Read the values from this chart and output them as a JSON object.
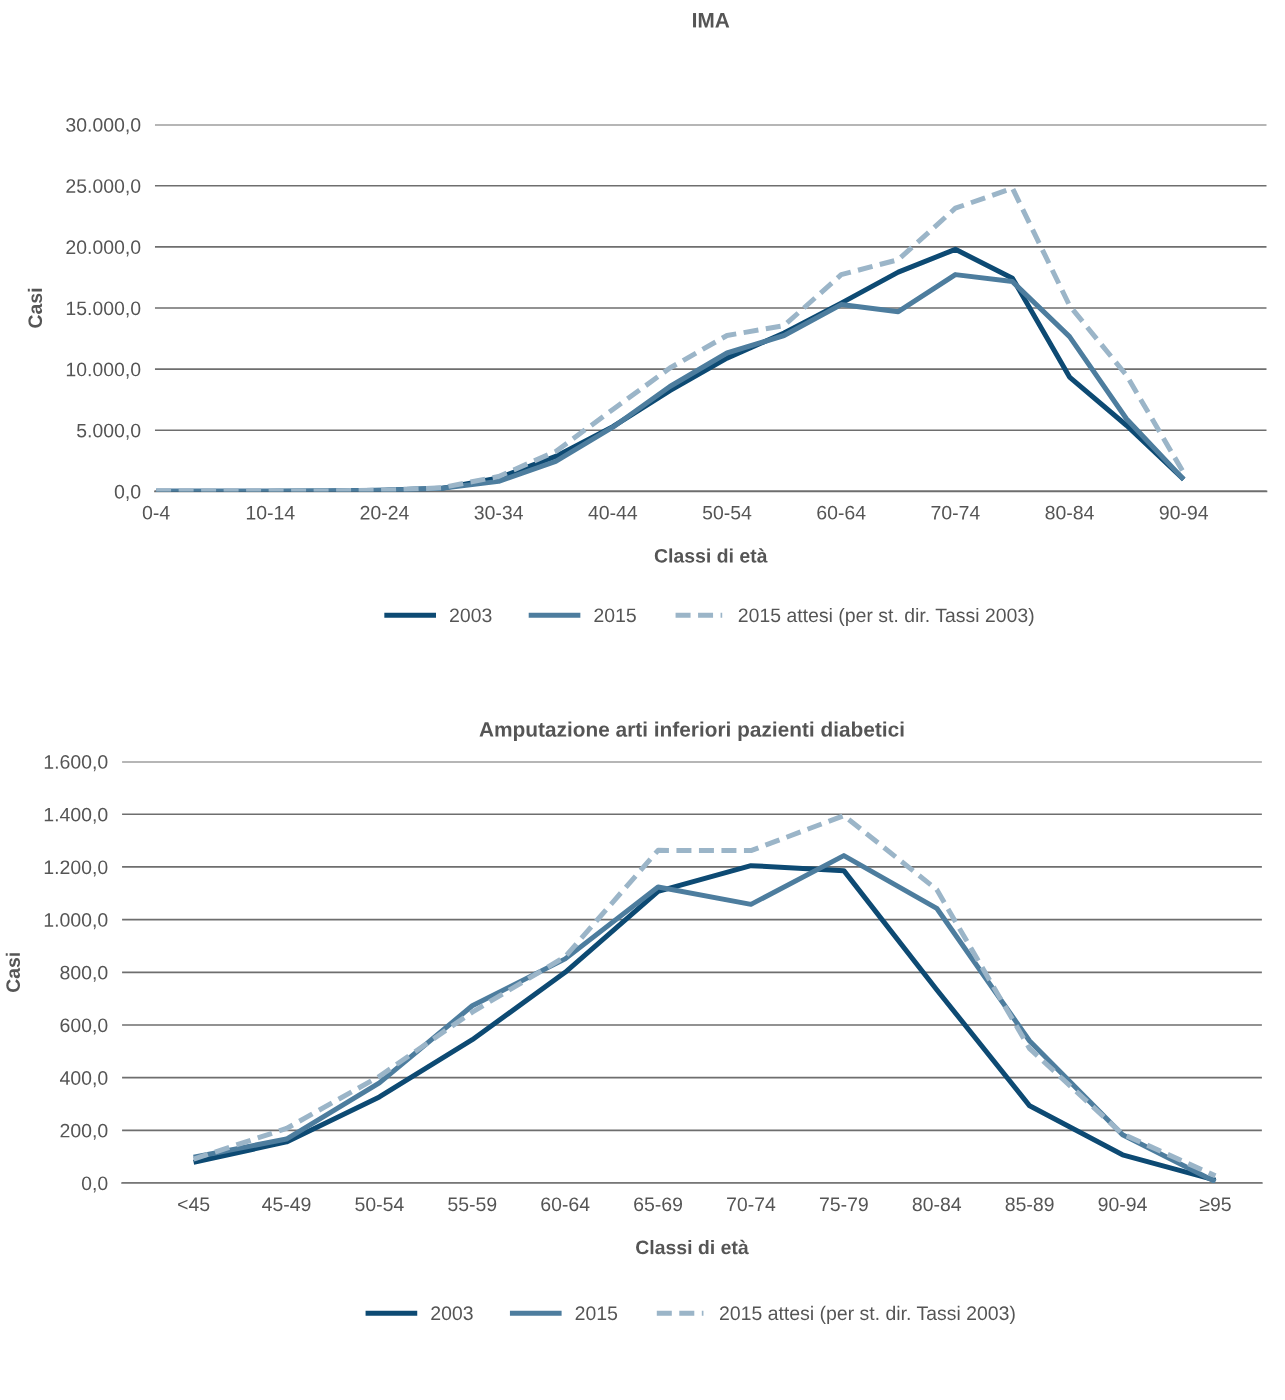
{
  "chart_data": [
    {
      "type": "line",
      "title": "IMA",
      "xlabel": "Classi di età",
      "ylabel": "Casi",
      "categories": [
        "0-4",
        null,
        "10-14",
        null,
        "20-24",
        null,
        "30-34",
        null,
        "40-44",
        null,
        "50-54",
        null,
        "60-64",
        null,
        "70-74",
        null,
        "80-84",
        null,
        "90-94",
        null
      ],
      "series": [
        {
          "name": "2003",
          "color": "#0d4a73",
          "line_style": "solid",
          "values": [
            10,
            10,
            20,
            40,
            100,
            250,
            1100,
            2860,
            5300,
            8250,
            10900,
            12950,
            15400,
            17930,
            19800,
            17440,
            9350,
            5390,
            980,
            null
          ]
        },
        {
          "name": "2015",
          "color": "#4d7d9e",
          "line_style": "solid",
          "values": [
            10,
            10,
            20,
            40,
            100,
            250,
            820,
            2450,
            5250,
            8580,
            11320,
            12750,
            15280,
            14700,
            17730,
            17160,
            12660,
            5920,
            980,
            null
          ]
        },
        {
          "name": "2015 attesi (per st. dir. Tassi 2003)",
          "color": "#9bb5c8",
          "line_style": "dashed",
          "values": [
            10,
            10,
            20,
            40,
            100,
            300,
            1220,
            3270,
            6700,
            10090,
            12750,
            13560,
            17730,
            18950,
            23160,
            24800,
            15200,
            9480,
            1510,
            null
          ]
        }
      ],
      "ylim": [
        0,
        30000
      ],
      "yticks": [
        {
          "value": 0,
          "label": "0,0"
        },
        {
          "value": 5000,
          "label": "5.000,0"
        },
        {
          "value": 10000,
          "label": "10.000,0"
        },
        {
          "value": 15000,
          "label": "15.000,0"
        },
        {
          "value": 20000,
          "label": "20.000,0"
        },
        {
          "value": 25000,
          "label": "25.000,0"
        },
        {
          "value": 30000,
          "label": "30.000,0"
        }
      ],
      "grid": "y",
      "legend": "bottom",
      "marker": "none"
    },
    {
      "type": "line",
      "title": "Amputazione arti inferiori pazienti diabetici",
      "xlabel": "Classi di età",
      "ylabel": "Casi",
      "categories": [
        "<45",
        "45-49",
        "50-54",
        "55-59",
        "60-64",
        "65-69",
        "70-74",
        "75-79",
        "80-84",
        "85-89",
        "90-94",
        "≥95"
      ],
      "series": [
        {
          "name": "2003",
          "color": "#0d4a73",
          "line_style": "solid",
          "values": [
            79,
            156,
            327,
            544,
            800,
            1107,
            1205,
            1186,
            734,
            293,
            107,
            11
          ]
        },
        {
          "name": "2015",
          "color": "#4d7d9e",
          "line_style": "solid",
          "values": [
            98,
            167,
            380,
            673,
            851,
            1124,
            1058,
            1243,
            1043,
            539,
            183,
            5
          ]
        },
        {
          "name": "2015 attesi (per st. dir. Tassi 2003)",
          "color": "#9bb5c8",
          "line_style": "dashed",
          "values": [
            91,
            207,
            405,
            649,
            859,
            1263,
            1262,
            1395,
            1114,
            510,
            186,
            27
          ]
        }
      ],
      "ylim": [
        0,
        1600
      ],
      "yticks": [
        {
          "value": 0,
          "label": "0,0"
        },
        {
          "value": 200,
          "label": "200,0"
        },
        {
          "value": 400,
          "label": "400,0"
        },
        {
          "value": 600,
          "label": "600,0"
        },
        {
          "value": 800,
          "label": "800,0"
        },
        {
          "value": 1000,
          "label": "1.000,0"
        },
        {
          "value": 1200,
          "label": "1.200,0"
        },
        {
          "value": 1400,
          "label": "1.400,0"
        },
        {
          "value": 1600,
          "label": "1.600,0"
        }
      ],
      "grid": "y",
      "legend": "bottom",
      "marker": "none"
    }
  ]
}
